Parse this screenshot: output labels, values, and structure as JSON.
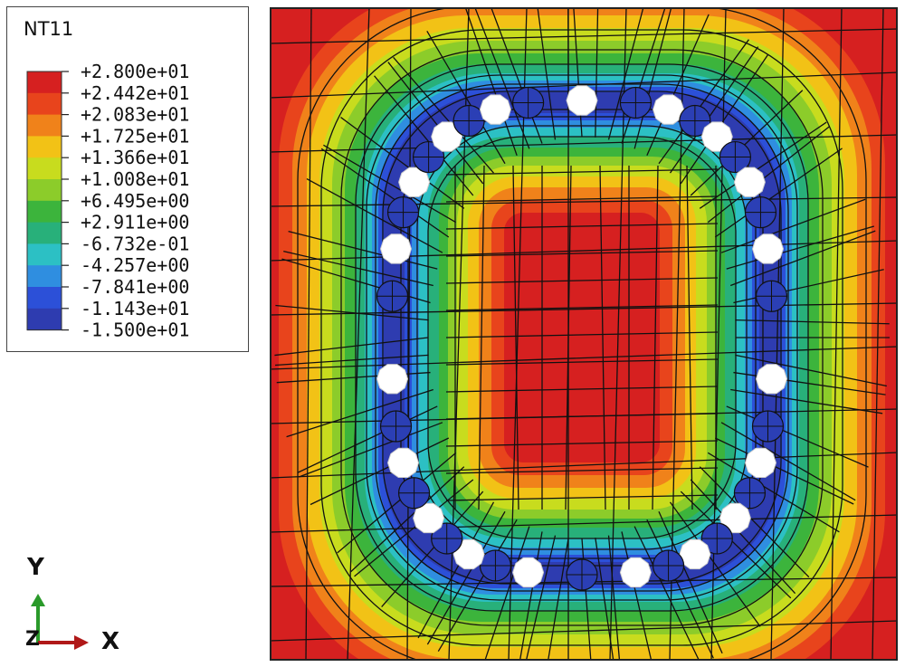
{
  "legend": {
    "title": "NT11",
    "colors": [
      "#d62020",
      "#e8441c",
      "#f0821a",
      "#f2c216",
      "#c8dc1e",
      "#8ccc2a",
      "#3cb43c",
      "#28b07a",
      "#2cc0c4",
      "#2f8ee0",
      "#2c50d8",
      "#2e3cb0"
    ],
    "labels": [
      "+2.800e+01",
      "+2.442e+01",
      "+2.083e+01",
      "+1.725e+01",
      "+1.366e+01",
      "+1.008e+01",
      "+6.495e+00",
      "+2.911e+00",
      "-6.732e-01",
      "-4.257e+00",
      "-7.841e+00",
      "-1.143e+01",
      "-1.500e+01"
    ]
  },
  "contour": {
    "field": "NT11",
    "max": 28.0,
    "min": -15.0,
    "hole_count_white": 20,
    "hole_count_frozen": 18
  },
  "triad": {
    "y_label": "Y",
    "x_label": "X",
    "z_label": "Z",
    "y_color": "#2a9a2a",
    "x_color": "#b01818"
  }
}
